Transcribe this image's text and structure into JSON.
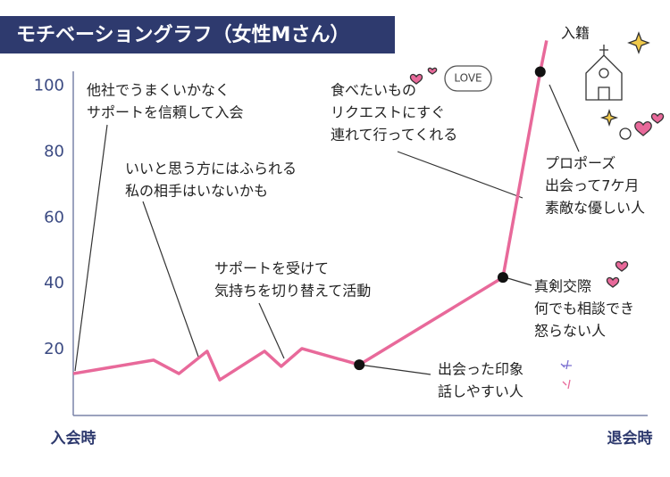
{
  "chart_data": {
    "type": "line",
    "title": "モチベーショングラフ（女性Mさん）",
    "x": [
      0,
      14,
      18.4,
      23.3,
      25.5,
      33.3,
      36.2,
      39.8,
      49.8,
      74.8,
      81.3,
      82.4
    ],
    "values": [
      12.7,
      16.8,
      12.7,
      19.5,
      10.8,
      19.5,
      14.9,
      20.3,
      15.4,
      41.9,
      104.3,
      113.8
    ],
    "color": "#e8699a",
    "markers": [
      8,
      9,
      10
    ],
    "xlim": [
      0,
      100
    ],
    "ylim": [
      0,
      115
    ],
    "xticks": [
      {
        "value": 0,
        "label": "入会時"
      },
      {
        "value": 100,
        "label": "退会時"
      }
    ],
    "yticks": [
      20,
      40,
      60,
      80,
      100
    ],
    "annotations": [
      {
        "lines": [
          "他社でうまくいかなく",
          "サポートを信頼して入会"
        ]
      },
      {
        "lines": [
          "いいと思う方にはふられる",
          "私の相手はいないかも"
        ]
      },
      {
        "lines": [
          "サポートを受けて",
          "気持ちを切り替えて活動"
        ]
      },
      {
        "lines": [
          "食べたいもの",
          "リクエストにすぐ",
          "連れて行ってくれる"
        ]
      },
      {
        "lines": [
          "プロポーズ",
          "出会って7ケ月",
          "素敵な優しい人"
        ]
      },
      {
        "lines": [
          "真剣交際",
          "何でも相談でき",
          "怒らない人"
        ]
      },
      {
        "lines": [
          "出会った印象",
          "話しやすい人"
        ]
      },
      {
        "lines": [
          "入籍"
        ]
      }
    ],
    "love_badge": "LOVE"
  }
}
